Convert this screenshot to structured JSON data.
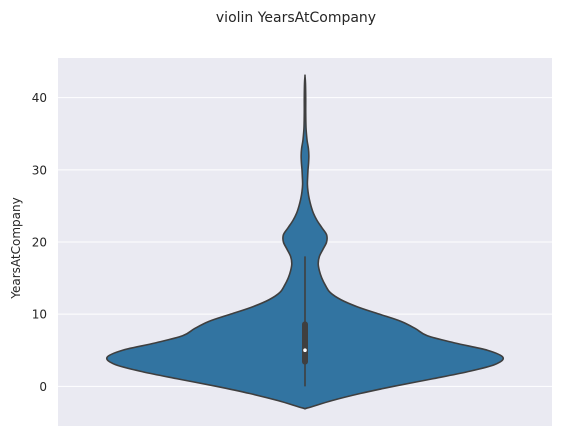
{
  "chart_data": {
    "type": "violin",
    "title": "violin YearsAtCompany",
    "xlabel": "",
    "ylabel": "YearsAtCompany",
    "ylim": [
      -5.5,
      45.5
    ],
    "yticks": [
      0,
      10,
      20,
      30,
      40
    ],
    "grid": true,
    "colors": {
      "background": "#eaeaf2",
      "grid": "#ffffff",
      "violin_fill": "#3274a1",
      "violin_edge": "#3f3f3f",
      "box": "#3f3f3f",
      "median": "#ffffff"
    },
    "density": [
      [
        -3.0,
        0.02
      ],
      [
        -2.0,
        0.22
      ],
      [
        -1.0,
        0.46
      ],
      [
        0.0,
        0.74
      ],
      [
        1.0,
        1.05
      ],
      [
        2.0,
        1.35
      ],
      [
        3.0,
        1.58
      ],
      [
        4.0,
        1.65
      ],
      [
        5.0,
        1.52
      ],
      [
        6.0,
        1.25
      ],
      [
        7.0,
        1.02
      ],
      [
        8.0,
        0.92
      ],
      [
        9.0,
        0.8
      ],
      [
        10.0,
        0.62
      ],
      [
        11.0,
        0.44
      ],
      [
        12.0,
        0.3
      ],
      [
        13.0,
        0.21
      ],
      [
        14.0,
        0.17
      ],
      [
        15.0,
        0.14
      ],
      [
        16.0,
        0.12
      ],
      [
        17.0,
        0.11
      ],
      [
        18.0,
        0.12
      ],
      [
        19.0,
        0.15
      ],
      [
        20.0,
        0.18
      ],
      [
        21.0,
        0.18
      ],
      [
        22.0,
        0.14
      ],
      [
        23.0,
        0.1
      ],
      [
        24.0,
        0.07
      ],
      [
        25.0,
        0.05
      ],
      [
        26.0,
        0.035
      ],
      [
        27.0,
        0.025
      ],
      [
        28.0,
        0.02
      ],
      [
        29.0,
        0.022
      ],
      [
        30.0,
        0.025
      ],
      [
        31.0,
        0.03
      ],
      [
        32.0,
        0.032
      ],
      [
        33.0,
        0.028
      ],
      [
        34.0,
        0.018
      ],
      [
        35.0,
        0.012
      ],
      [
        36.0,
        0.008
      ],
      [
        38.0,
        0.006
      ],
      [
        40.0,
        0.006
      ],
      [
        42.0,
        0.004
      ],
      [
        43.0,
        0.0
      ]
    ],
    "box": {
      "whisker_low": 0,
      "q1": 3,
      "median": 5,
      "q3": 9,
      "whisker_high": 18
    }
  }
}
